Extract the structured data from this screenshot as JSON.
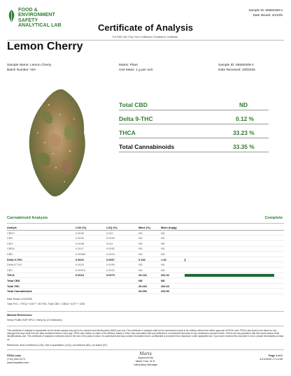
{
  "header": {
    "logo_lines": [
      "FOOD &",
      "ENVIRONMENT",
      "SAFETY",
      "ANALYTICAL LAB"
    ],
    "sample_id_line": "Sample ID: 65550409-4",
    "date_issued_line": "Date Issued: 4/13/25",
    "title": "Certificate of Analysis",
    "subtitle": "For R&D Use Only.  Not a California Compliance Certificate.",
    "colors": {
      "brand_green": "#2e7d32",
      "bar_green": "#1e6b33"
    }
  },
  "product": {
    "name": "Lemon Cherry",
    "image_icon": "cannabis-bud-image"
  },
  "info": {
    "sample_name": "Sample Name: Lemon Cherry",
    "batch_number": "Batch Number: N/A",
    "matrix": "Matrix: Plant",
    "unit_mass": "Unit Mass: 1 g per unit",
    "sample_id": "Sample ID: 65550409-4",
    "date_received": "Date Received: 4/9/2025"
  },
  "potency": [
    {
      "label": "Total CBD",
      "value": "ND"
    },
    {
      "label": "Delta 9-THC",
      "value": "0.12 %"
    },
    {
      "label": "THCA",
      "value": "33.23 %"
    },
    {
      "label": "Total Cannabinoids",
      "value": "33.35 %"
    }
  ],
  "analysis": {
    "title": "Cannabinoid Analysis",
    "status": "Complete",
    "columns": [
      "Analyte",
      "LOD (%)",
      "LOQ (%)",
      "Mass (%)",
      "Mass (mg/g)"
    ],
    "bar_max_mg_g": 332.32,
    "rows": [
      {
        "analyte": "CBDV",
        "lod": "0.0035",
        "loq": "0.011",
        "mass_pct": "ND",
        "mass_mg": "ND",
        "bold": false
      },
      {
        "analyte": "CBD",
        "lod": "0.0030",
        "loq": "0.0090",
        "mass_pct": "ND",
        "mass_mg": "ND",
        "bold": false
      },
      {
        "analyte": "CBG",
        "lod": "0.0038",
        "loq": "0.011",
        "mass_pct": "ND",
        "mass_mg": "ND",
        "bold": false
      },
      {
        "analyte": "CBDA",
        "lod": "0.0017",
        "loq": "0.0052",
        "mass_pct": "ND",
        "mass_mg": "ND",
        "bold": false
      },
      {
        "analyte": "CBN",
        "lod": "0.00080",
        "loq": "0.0024",
        "mass_pct": "ND",
        "mass_mg": "ND",
        "bold": false
      },
      {
        "analyte": "Delta 9-THC",
        "lod": "0.0022",
        "loq": "0.0067",
        "mass_pct": "0.118",
        "mass_mg": "1.18",
        "bold": true,
        "bar_value": 1.18
      },
      {
        "analyte": "Delta 8-THC",
        "lod": "0.0020",
        "loq": "0.0059",
        "mass_pct": "ND",
        "mass_mg": "ND",
        "bold": false
      },
      {
        "analyte": "CBC",
        "lod": "0.00070",
        "loq": "0.0021",
        "mass_pct": "ND",
        "mass_mg": "ND",
        "bold": false
      },
      {
        "analyte": "THCA",
        "lod": "0.0024",
        "loq": "0.0073",
        "mass_pct": "33.232",
        "mass_mg": "332.32",
        "bold": true,
        "bar_value": 332.32
      },
      {
        "analyte": "Total CBD",
        "lod": "",
        "loq": "",
        "mass_pct": "ND",
        "mass_mg": "ND",
        "bold": true
      },
      {
        "analyte": "Total THC",
        "lod": "",
        "loq": "",
        "mass_pct": "29.263",
        "mass_mg": "292.63",
        "bold": true
      },
      {
        "analyte": "Total Cannabinoids",
        "lod": "",
        "loq": "",
        "mass_pct": "33.350",
        "mass_mg": "333.50",
        "bold": true
      }
    ],
    "date_tested": "Date Tested: 4/11/2025",
    "formula": "Total THC = THCa * 0.877 + d9-THC; Total CBD = CBDa * 0.877 + CBD"
  },
  "method": {
    "title": "Method References:",
    "text": "Hemp Profile (SOP HPLC: Hemp by UV Detection)"
  },
  "disclaimer": "This certificate of analysis is responsible for the tested sample only and is for research and development (R&D) use only. This certificate of analysis shall not be reproduced except in its entirety, without the written approval of FESA Labs. FESA Labs shall not be liable for any damage that may result from the data contained herein in any way. FESA Labs makes no claim to the efficacy, safety or other risks associated with any detected or non-detected amounts of any substances reported herein. If there are any questions with this report please email info@fesalabs.com. This certificate of analysis is intended only for the use of the party to whom it is addressed and may contain information that is confidential or protected from disclosure under applicable law. If you have received this document in error, please immediately contact us.",
  "references": "References: limit of detection (LOD), limit of quantitation (LOQ), not detected (ND), not tested (NT)",
  "footer": {
    "lab_name": "FESA Labs",
    "phone": "(714) 343-0172",
    "website": "www.fesalabs.com",
    "signature": "Maris",
    "approved_by": "Approved By",
    "approver": "Marie True, M.S.",
    "approver_title": "Laboratory Manager",
    "page": "Page 1 of 1",
    "timestamp": "4/13/2025 17:14:08"
  }
}
